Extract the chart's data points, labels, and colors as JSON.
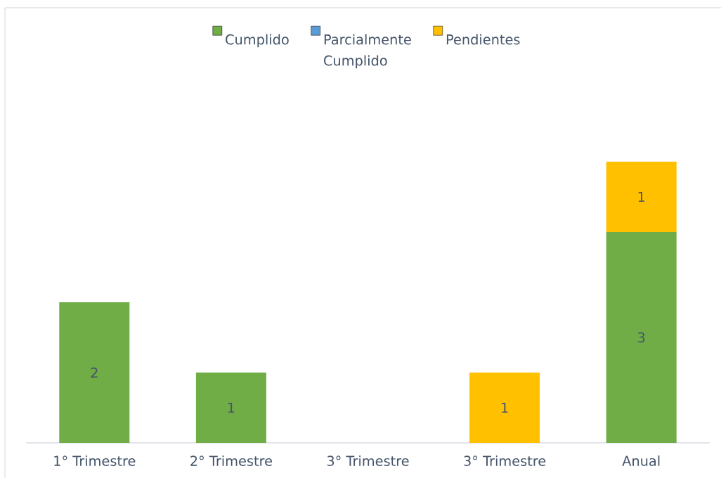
{
  "chart_data": {
    "type": "bar",
    "stacked": true,
    "legend": "top",
    "data_labels": true,
    "tick_labels": "x",
    "categories": [
      "1° Trimestre",
      "2° Trimestre",
      "3° Trimestre",
      "3° Trimestre",
      "Anual"
    ],
    "series": [
      {
        "name": "Cumplido",
        "color": "#70ad47",
        "values": [
          2,
          1,
          null,
          null,
          3
        ]
      },
      {
        "name": "Parcialmente Cumplido",
        "color": "#5b9bd5",
        "values": [
          null,
          null,
          null,
          null,
          null
        ]
      },
      {
        "name": "Pendientes",
        "color": "#ffc000",
        "values": [
          null,
          null,
          null,
          1,
          1
        ]
      }
    ]
  }
}
